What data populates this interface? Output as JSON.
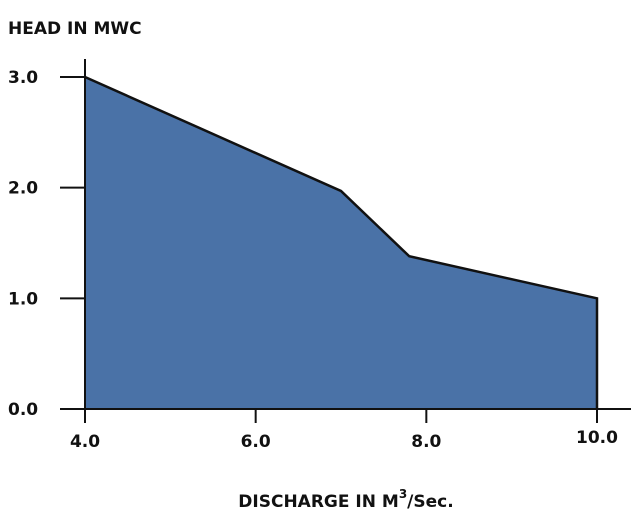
{
  "chart_data": {
    "type": "area",
    "ylabel": "HEAD IN MWC",
    "xlabel_main": "DISCHARGE IN M",
    "xlabel_sup": "3",
    "xlabel_tail": "/Sec.",
    "x": [
      4.0,
      7.0,
      7.8,
      10.0
    ],
    "series": [
      {
        "values": [
          3.0,
          1.97,
          1.38,
          1.0
        ]
      }
    ],
    "xlim": [
      4.0,
      10.0
    ],
    "ylim": [
      0.0,
      3.0
    ],
    "xticks": [
      "4.0",
      "6.0",
      "8.0",
      "10.0"
    ],
    "xtick_values": [
      4.0,
      6.0,
      8.0,
      10.0
    ],
    "yticks": [
      "3.0",
      "2.0",
      "1.0",
      "0.0"
    ],
    "ytick_values": [
      3.0,
      2.0,
      1.0,
      0.0
    ],
    "grid": false,
    "fill_color": "#4A72A7",
    "line_color": "#111111"
  }
}
